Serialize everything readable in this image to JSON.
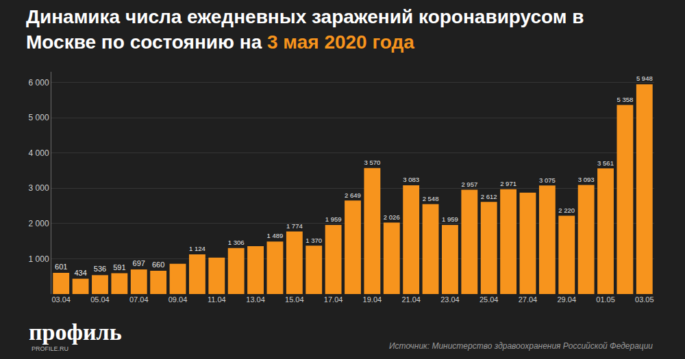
{
  "chart_data": {
    "type": "bar",
    "title": "Динамика числа ежедневных заражений коронавирусом в Москве по состоянию на 3 мая 2020 года",
    "categories": [
      "03.04",
      null,
      "05.04",
      null,
      "07.04",
      null,
      "09.04",
      null,
      "11.04",
      null,
      "13.04",
      null,
      "15.04",
      null,
      "17.04",
      null,
      "19.04",
      null,
      "21.04",
      null,
      "23.04",
      null,
      "25.04",
      null,
      "27.04",
      null,
      "29.04",
      null,
      "01.05",
      null,
      "03.05"
    ],
    "values": [
      601,
      434,
      536,
      591,
      697,
      660,
      857,
      1124,
      1030,
      1306,
      1355,
      1489,
      1774,
      1370,
      1959,
      2649,
      3570,
      2026,
      3083,
      2548,
      1959,
      2957,
      2612,
      2971,
      2876,
      3075,
      2220,
      3093,
      3561,
      5358,
      5948
    ],
    "value_labels": [
      "601",
      "434",
      "536",
      "591",
      "697",
      "660",
      null,
      "1 124",
      null,
      "1 306",
      null,
      "1 489",
      "1 774",
      "1 370",
      "1 959",
      "2 649",
      "3 570",
      "2 026",
      "3 083",
      "2 548",
      "1 959",
      "2 957",
      "2 612",
      "2 971",
      null,
      "3 075",
      "2 220",
      "3 093",
      "3 561",
      "5 358",
      "5 948"
    ],
    "data_labels": true,
    "color": "#f7941d",
    "ylim": [
      0,
      6300
    ],
    "yticks": [
      {
        "value": 1000,
        "label": "1 000"
      },
      {
        "value": 2000,
        "label": "2 000"
      },
      {
        "value": 3000,
        "label": "3 000"
      },
      {
        "value": 4000,
        "label": "4 000"
      },
      {
        "value": 5000,
        "label": "5 000"
      },
      {
        "value": 6000,
        "label": "6 000"
      }
    ],
    "grid": true,
    "annotations": [
      "профиль",
      "PROFILE.RU",
      "Источник: Министерство здравоохранения Российской Федерации"
    ]
  }
}
